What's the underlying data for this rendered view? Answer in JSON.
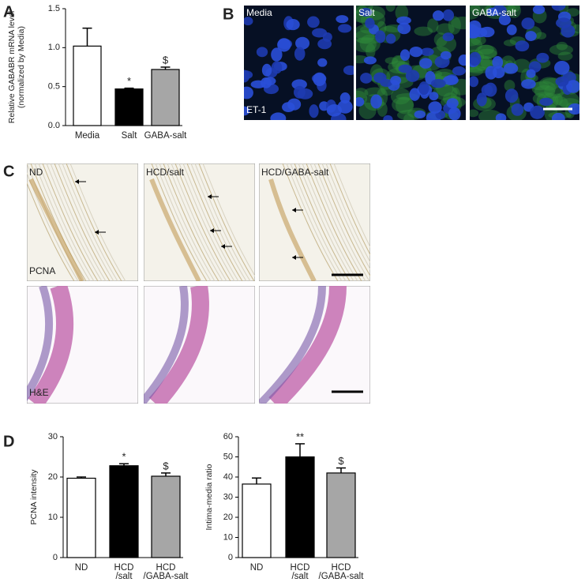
{
  "panel_labels": [
    "A",
    "B",
    "C",
    "D"
  ],
  "fluorescence": {
    "labels": [
      "Media",
      "Salt",
      "GABA-salt"
    ],
    "stain": "ET-1"
  },
  "histology": {
    "labels": [
      "ND",
      "HCD/salt",
      "HCD/GABA-salt"
    ],
    "rows": [
      "PCNA",
      "H&E"
    ]
  },
  "chart_data": [
    {
      "type": "bar",
      "ylabel": [
        "Relative GABABR mRNA level",
        "(normalized by Media)"
      ],
      "categories": [
        [
          "Media"
        ],
        [
          "Salt"
        ],
        [
          "GABA-salt"
        ]
      ],
      "values": [
        1.02,
        0.47,
        0.72
      ],
      "errors": [
        0.23,
        0.01,
        0.03
      ],
      "annotations": [
        null,
        "*",
        "$"
      ],
      "colors": [
        "#ffffff",
        "#000000",
        "#a6a6a6"
      ],
      "ylim": [
        0,
        1.5
      ],
      "yticks": [
        {
          "value": 0,
          "label": "0.0"
        },
        {
          "value": 0.5,
          "label": "0.5"
        },
        {
          "value": 1,
          "label": "1.0"
        },
        {
          "value": 1.5,
          "label": "1.5"
        }
      ]
    },
    {
      "type": "bar",
      "ylabel": [
        "PCNA intensity"
      ],
      "categories": [
        [
          "ND"
        ],
        [
          "HCD",
          "/salt"
        ],
        [
          "HCD",
          "/GABA-salt"
        ]
      ],
      "values": [
        19.7,
        22.8,
        20.2
      ],
      "errors": [
        0.3,
        0.5,
        0.8
      ],
      "annotations": [
        null,
        "*",
        "$"
      ],
      "colors": [
        "#ffffff",
        "#000000",
        "#a6a6a6"
      ],
      "ylim": [
        0,
        30
      ],
      "yticks": [
        0,
        10,
        20,
        30
      ]
    },
    {
      "type": "bar",
      "ylabel": [
        "Intima-media ratio"
      ],
      "categories": [
        [
          "ND"
        ],
        [
          "HCD",
          "/salt"
        ],
        [
          "HCD",
          "/GABA-salt"
        ]
      ],
      "values": [
        36.5,
        50,
        42
      ],
      "errors": [
        3,
        6.5,
        2.5
      ],
      "annotations": [
        null,
        "**",
        "$"
      ],
      "colors": [
        "#ffffff",
        "#000000",
        "#a6a6a6"
      ],
      "ylim": [
        0,
        60
      ],
      "yticks": [
        0,
        10,
        20,
        30,
        40,
        50,
        60
      ]
    }
  ]
}
